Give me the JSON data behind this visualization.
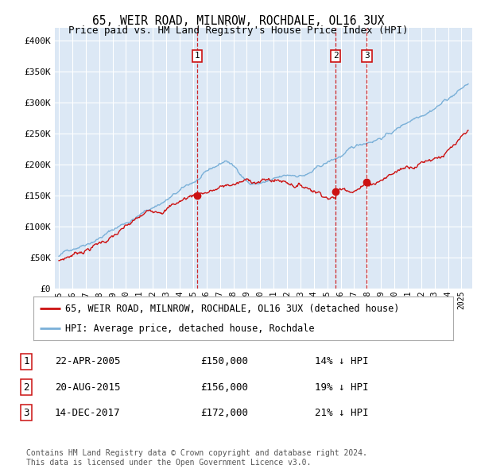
{
  "title": "65, WEIR ROAD, MILNROW, ROCHDALE, OL16 3UX",
  "subtitle": "Price paid vs. HM Land Registry's House Price Index (HPI)",
  "ylim": [
    0,
    420000
  ],
  "yticks": [
    0,
    50000,
    100000,
    150000,
    200000,
    250000,
    300000,
    350000,
    400000
  ],
  "ytick_labels": [
    "£0",
    "£50K",
    "£100K",
    "£150K",
    "£200K",
    "£250K",
    "£300K",
    "£350K",
    "£400K"
  ],
  "plot_bg_color": "#dce8f5",
  "hpi_color": "#7ab0d8",
  "sale_color": "#cc1111",
  "vline_color": "#cc1111",
  "sale_points": [
    {
      "date_num": 2005.31,
      "price": 150000,
      "label": "1"
    },
    {
      "date_num": 2015.63,
      "price": 156000,
      "label": "2"
    },
    {
      "date_num": 2017.95,
      "price": 172000,
      "label": "3"
    }
  ],
  "legend_entries": [
    "65, WEIR ROAD, MILNROW, ROCHDALE, OL16 3UX (detached house)",
    "HPI: Average price, detached house, Rochdale"
  ],
  "table_rows": [
    {
      "num": "1",
      "date": "22-APR-2005",
      "price": "£150,000",
      "pct": "14% ↓ HPI"
    },
    {
      "num": "2",
      "date": "20-AUG-2015",
      "price": "£156,000",
      "pct": "19% ↓ HPI"
    },
    {
      "num": "3",
      "date": "14-DEC-2017",
      "price": "£172,000",
      "pct": "21% ↓ HPI"
    }
  ],
  "footer": "Contains HM Land Registry data © Crown copyright and database right 2024.\nThis data is licensed under the Open Government Licence v3.0.",
  "title_fontsize": 10.5,
  "subtitle_fontsize": 9,
  "tick_fontsize": 8,
  "legend_fontsize": 8.5,
  "table_fontsize": 9
}
